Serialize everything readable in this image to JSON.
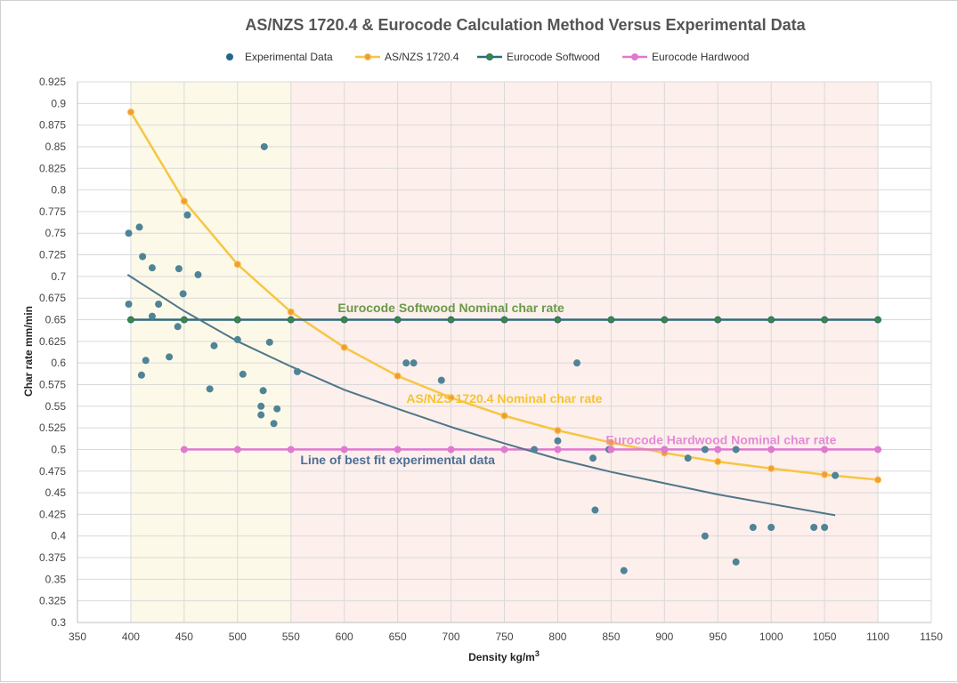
{
  "chart_data": {
    "type": "scatter",
    "title": "AS/NZS 1720.4 & Eurocode Calculation Method Versus Experimental Data",
    "xlabel": "Density kg/m",
    "xlabel_sup": "3",
    "ylabel": "Char rate mm/min",
    "xlim": [
      350,
      1150
    ],
    "ylim": [
      0.3,
      0.925
    ],
    "x_ticks": [
      "350",
      "400",
      "450",
      "500",
      "550",
      "600",
      "650",
      "700",
      "750",
      "800",
      "850",
      "900",
      "950",
      "1000",
      "1050",
      "1100",
      "1150"
    ],
    "y_ticks": [
      "0.3",
      "0.325",
      "0.35",
      "0.375",
      "0.4",
      "0.425",
      "0.45",
      "0.475",
      "0.5",
      "0.525",
      "0.55",
      "0.575",
      "0.6",
      "0.625",
      "0.65",
      "0.675",
      "0.7",
      "0.725",
      "0.75",
      "0.775",
      "0.8",
      "0.825",
      "0.85",
      "0.875",
      "0.9",
      "0.925"
    ],
    "grid": true,
    "legend_position": "top",
    "bands": [
      {
        "x_from": 400,
        "x_to": 550,
        "color": "#fdf9e8"
      },
      {
        "x_from": 550,
        "x_to": 1100,
        "color": "#fdefec"
      }
    ],
    "series": [
      {
        "name": "Experimental Data",
        "kind": "points",
        "color": "#4f8496",
        "marker_color": "#1f6a8c",
        "points": [
          [
            398,
            0.75
          ],
          [
            398,
            0.668
          ],
          [
            408,
            0.757
          ],
          [
            411,
            0.723
          ],
          [
            410,
            0.586
          ],
          [
            414,
            0.603
          ],
          [
            420,
            0.71
          ],
          [
            420,
            0.654
          ],
          [
            426,
            0.668
          ],
          [
            436,
            0.607
          ],
          [
            444,
            0.642
          ],
          [
            445,
            0.709
          ],
          [
            449,
            0.68
          ],
          [
            453,
            0.771
          ],
          [
            463,
            0.702
          ],
          [
            474,
            0.57
          ],
          [
            478,
            0.62
          ],
          [
            500,
            0.627
          ],
          [
            505,
            0.587
          ],
          [
            522,
            0.55
          ],
          [
            522,
            0.54
          ],
          [
            524,
            0.568
          ],
          [
            525,
            0.85
          ],
          [
            530,
            0.624
          ],
          [
            534,
            0.53
          ],
          [
            537,
            0.547
          ],
          [
            556,
            0.59
          ],
          [
            658,
            0.6
          ],
          [
            665,
            0.6
          ],
          [
            691,
            0.58
          ],
          [
            778,
            0.5
          ],
          [
            800,
            0.51
          ],
          [
            818,
            0.6
          ],
          [
            833,
            0.49
          ],
          [
            835,
            0.43
          ],
          [
            848,
            0.5
          ],
          [
            862,
            0.36
          ],
          [
            900,
            0.5
          ],
          [
            922,
            0.49
          ],
          [
            938,
            0.5
          ],
          [
            938,
            0.4
          ],
          [
            967,
            0.5
          ],
          [
            967,
            0.37
          ],
          [
            983,
            0.41
          ],
          [
            1000,
            0.41
          ],
          [
            1040,
            0.41
          ],
          [
            1050,
            0.41
          ],
          [
            1060,
            0.47
          ]
        ]
      },
      {
        "name": "AS/NZS 1720.4",
        "kind": "line",
        "color": "#f6c643",
        "marker_color": "#f29a3a",
        "points": [
          [
            400,
            0.89
          ],
          [
            450,
            0.787
          ],
          [
            500,
            0.714
          ],
          [
            550,
            0.659
          ],
          [
            600,
            0.618
          ],
          [
            650,
            0.585
          ],
          [
            700,
            0.56
          ],
          [
            750,
            0.539
          ],
          [
            800,
            0.522
          ],
          [
            850,
            0.508
          ],
          [
            900,
            0.496
          ],
          [
            950,
            0.486
          ],
          [
            1000,
            0.478
          ],
          [
            1050,
            0.471
          ],
          [
            1100,
            0.465
          ]
        ]
      },
      {
        "name": "Eurocode Softwood",
        "kind": "line",
        "color": "#2f6b7d",
        "marker_color": "#3a8a3a",
        "points": [
          [
            400,
            0.65
          ],
          [
            450,
            0.65
          ],
          [
            500,
            0.65
          ],
          [
            550,
            0.65
          ],
          [
            600,
            0.65
          ],
          [
            650,
            0.65
          ],
          [
            700,
            0.65
          ],
          [
            750,
            0.65
          ],
          [
            800,
            0.65
          ],
          [
            850,
            0.65
          ],
          [
            900,
            0.65
          ],
          [
            950,
            0.65
          ],
          [
            1000,
            0.65
          ],
          [
            1050,
            0.65
          ],
          [
            1100,
            0.65
          ]
        ]
      },
      {
        "name": "Eurocode Hardwood",
        "kind": "line",
        "color": "#e079d0",
        "marker_color": "#e079d0",
        "points": [
          [
            450,
            0.5
          ],
          [
            500,
            0.5
          ],
          [
            550,
            0.5
          ],
          [
            600,
            0.5
          ],
          [
            650,
            0.5
          ],
          [
            700,
            0.5
          ],
          [
            750,
            0.5
          ],
          [
            800,
            0.5
          ],
          [
            850,
            0.5
          ],
          [
            900,
            0.5
          ],
          [
            950,
            0.5
          ],
          [
            1000,
            0.5
          ],
          [
            1050,
            0.5
          ],
          [
            1100,
            0.5
          ]
        ]
      }
    ],
    "trendline": {
      "color": "#4f7688",
      "points": [
        [
          397,
          0.702
        ],
        [
          450,
          0.66
        ],
        [
          500,
          0.625
        ],
        [
          550,
          0.596
        ],
        [
          600,
          0.569
        ],
        [
          650,
          0.547
        ],
        [
          700,
          0.526
        ],
        [
          750,
          0.507
        ],
        [
          800,
          0.489
        ],
        [
          850,
          0.474
        ],
        [
          900,
          0.461
        ],
        [
          950,
          0.448
        ],
        [
          1000,
          0.437
        ],
        [
          1060,
          0.424
        ]
      ]
    },
    "annotations": [
      {
        "text": "Eurocode Softwood Nominal char rate",
        "x": 700,
        "y": 0.659,
        "color": "#6a9a48"
      },
      {
        "text": "AS/NZS 1720.4 Nominal char rate",
        "x": 750,
        "y": 0.554,
        "color": "#f4c430"
      },
      {
        "text": "Eurocode Hardwood Nominal char rate",
        "x": 953,
        "y": 0.506,
        "color": "#e38bd7"
      },
      {
        "text": "Line of best fit experimental data",
        "x": 650,
        "y": 0.483,
        "color": "#4a6f96"
      }
    ]
  }
}
